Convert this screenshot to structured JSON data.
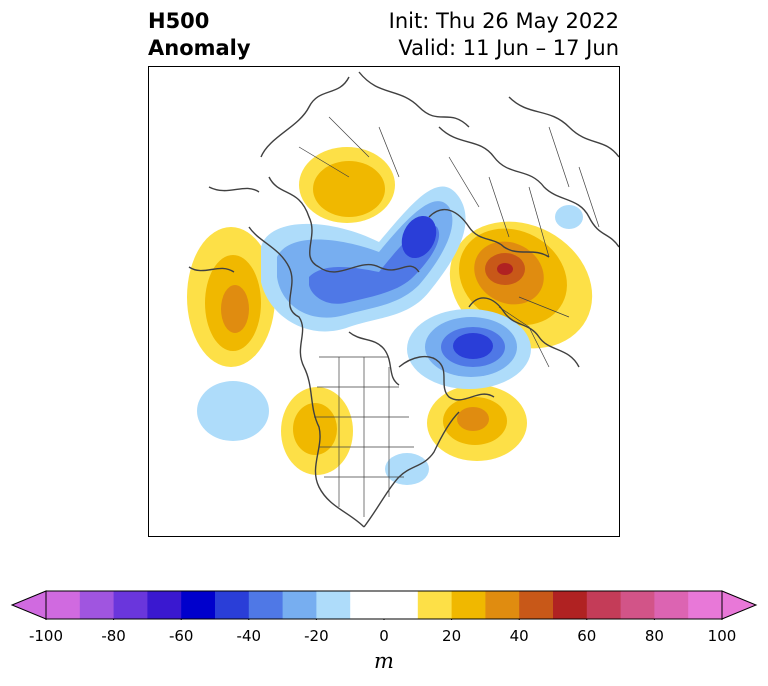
{
  "title": {
    "left_line1": "H500",
    "left_line2": "Anomaly",
    "right_line1": "Init: Thu 26 May 2022",
    "right_line2": "Valid: 11 Jun – 17 Jun"
  },
  "colorbar": {
    "unit": "m",
    "ticks": [
      "-100",
      "-80",
      "-60",
      "-40",
      "-20",
      "0",
      "20",
      "40",
      "60",
      "80",
      "100"
    ],
    "colors": [
      "#d06ae0",
      "#a055e0",
      "#6a36dc",
      "#3a18d0",
      "#0000cc",
      "#2a3ed8",
      "#4f78e6",
      "#77aef0",
      "#aedcfa",
      "#ffffff",
      "#ffffff",
      "#fde047",
      "#f0b800",
      "#e08c10",
      "#c85818",
      "#b02222",
      "#c43c58",
      "#d25488",
      "#dc64b2",
      "#e878d8"
    ],
    "under_color": "#d06ae0",
    "over_color": "#e878d8"
  },
  "map": {
    "projection": "polar stereographic, North America / North Pole",
    "coastline_color": "#404040"
  }
}
